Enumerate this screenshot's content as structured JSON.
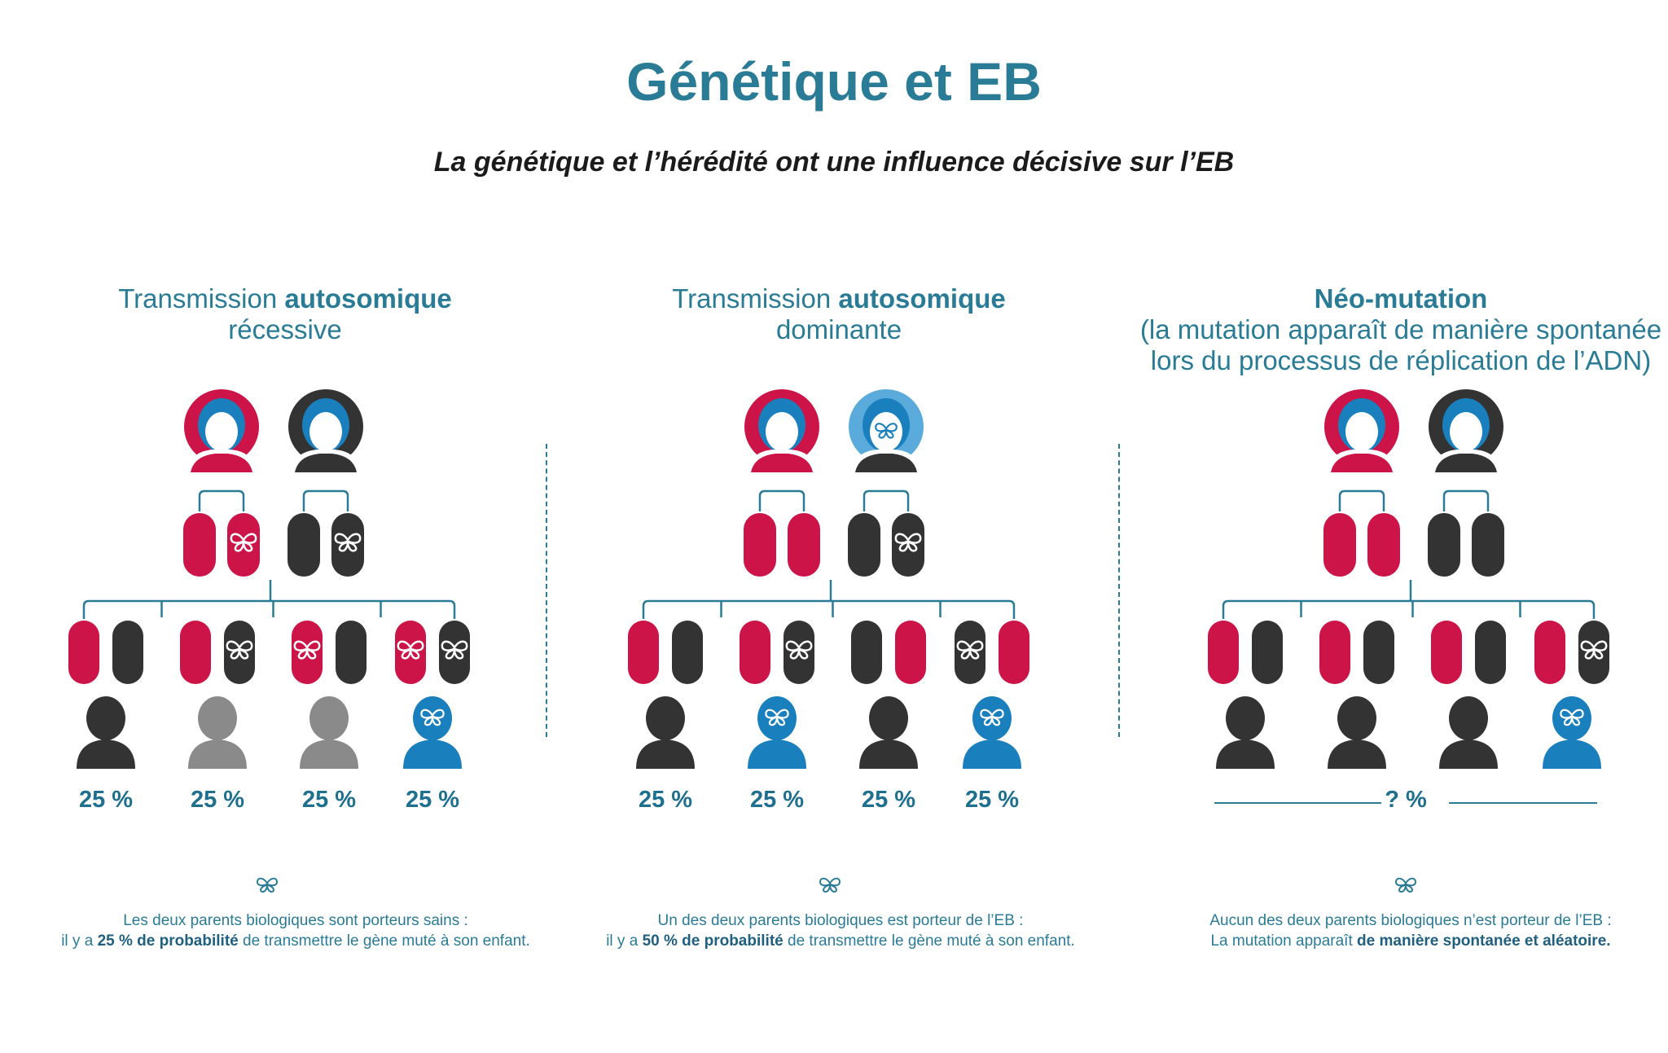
{
  "header": {
    "title": "Génétique et EB",
    "subtitle": "La génétique et l’hérédité ont une influence décisive sur l’EB"
  },
  "colors": {
    "teal": "#2a7b96",
    "crimson": "#cc1448",
    "dark": "#333334",
    "grey": "#8a8a8a",
    "blue": "#1a7fbd",
    "light_blue": "#5aabdc"
  },
  "columns": [
    {
      "id": "recessive",
      "heading": {
        "line1_pre": "Transmission ",
        "line1_bold": "autosomique",
        "line2": "récessive"
      },
      "mother": {
        "ring": "crimson",
        "affected": false
      },
      "father": {
        "ring": "dark",
        "affected": false
      },
      "parent_chromosomes": [
        {
          "color": "crimson",
          "mutated": false
        },
        {
          "color": "crimson",
          "mutated": true
        },
        {
          "color": "dark",
          "mutated": false
        },
        {
          "color": "dark",
          "mutated": true
        }
      ],
      "children": [
        {
          "chromosomes": [
            {
              "color": "crimson",
              "mutated": false
            },
            {
              "color": "dark",
              "mutated": false
            }
          ],
          "status": "healthy",
          "percent": "25 %"
        },
        {
          "chromosomes": [
            {
              "color": "crimson",
              "mutated": false
            },
            {
              "color": "dark",
              "mutated": true
            }
          ],
          "status": "carrier",
          "percent": "25 %"
        },
        {
          "chromosomes": [
            {
              "color": "crimson",
              "mutated": true
            },
            {
              "color": "dark",
              "mutated": false
            }
          ],
          "status": "carrier",
          "percent": "25 %"
        },
        {
          "chromosomes": [
            {
              "color": "crimson",
              "mutated": true
            },
            {
              "color": "dark",
              "mutated": true
            }
          ],
          "status": "affected",
          "percent": "25 %"
        }
      ],
      "note": {
        "line1": "Les deux parents biologiques sont porteurs sains :",
        "line2_pre": "il y a ",
        "line2_bold": "25 % de probabilité",
        "line2_post": " de transmettre le gène muté à son enfant."
      }
    },
    {
      "id": "dominant",
      "heading": {
        "line1_pre": "Transmission ",
        "line1_bold": "autosomique",
        "line2": "dominante"
      },
      "mother": {
        "ring": "crimson",
        "affected": false
      },
      "father": {
        "ring": "light_blue",
        "affected": true
      },
      "parent_chromosomes": [
        {
          "color": "crimson",
          "mutated": false
        },
        {
          "color": "crimson",
          "mutated": false
        },
        {
          "color": "dark",
          "mutated": false
        },
        {
          "color": "dark",
          "mutated": true
        }
      ],
      "children": [
        {
          "chromosomes": [
            {
              "color": "crimson",
              "mutated": false
            },
            {
              "color": "dark",
              "mutated": false
            }
          ],
          "status": "healthy",
          "percent": "25 %"
        },
        {
          "chromosomes": [
            {
              "color": "crimson",
              "mutated": false
            },
            {
              "color": "dark",
              "mutated": true
            }
          ],
          "status": "affected",
          "percent": "25 %"
        },
        {
          "chromosomes": [
            {
              "color": "dark",
              "mutated": false
            },
            {
              "color": "crimson",
              "mutated": false
            }
          ],
          "status": "healthy",
          "percent": "25 %"
        },
        {
          "chromosomes": [
            {
              "color": "dark",
              "mutated": true
            },
            {
              "color": "crimson",
              "mutated": false
            }
          ],
          "status": "affected",
          "percent": "25 %"
        }
      ],
      "note": {
        "line1": "Un des deux parents biologiques est porteur de l’EB :",
        "line2_pre": "il y a ",
        "line2_bold": "50 % de probabilité",
        "line2_post": " de transmettre le gène muté à son enfant."
      }
    },
    {
      "id": "neomutation",
      "heading": {
        "line1_bold": "Néo-mutation",
        "line2": "(la mutation apparaît de manière spontanée",
        "line3": "lors du processus de réplication de l’ADN)"
      },
      "mother": {
        "ring": "crimson",
        "affected": false
      },
      "father": {
        "ring": "dark",
        "affected": false
      },
      "parent_chromosomes": [
        {
          "color": "crimson",
          "mutated": false
        },
        {
          "color": "crimson",
          "mutated": false
        },
        {
          "color": "dark",
          "mutated": false
        },
        {
          "color": "dark",
          "mutated": false
        }
      ],
      "children": [
        {
          "chromosomes": [
            {
              "color": "crimson",
              "mutated": false
            },
            {
              "color": "dark",
              "mutated": false
            }
          ],
          "status": "healthy"
        },
        {
          "chromosomes": [
            {
              "color": "crimson",
              "mutated": false
            },
            {
              "color": "dark",
              "mutated": false
            }
          ],
          "status": "healthy"
        },
        {
          "chromosomes": [
            {
              "color": "crimson",
              "mutated": false
            },
            {
              "color": "dark",
              "mutated": false
            }
          ],
          "status": "healthy"
        },
        {
          "chromosomes": [
            {
              "color": "crimson",
              "mutated": false
            },
            {
              "color": "dark",
              "mutated": true
            }
          ],
          "status": "affected"
        }
      ],
      "unknown_percent": "? %",
      "note": {
        "line1": "Aucun des deux parents biologiques n’est porteur de l’EB :",
        "line2_pre": "La mutation apparaît ",
        "line2_bold": "de manière spontanée et aléatoire.",
        "line2_post": ""
      }
    }
  ]
}
